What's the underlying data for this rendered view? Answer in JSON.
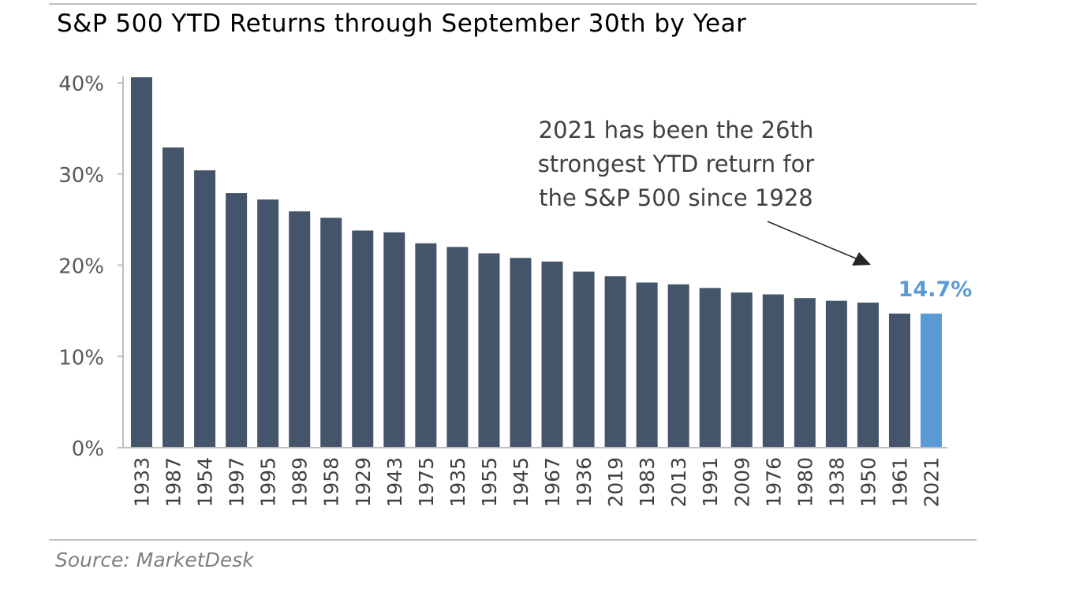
{
  "title": "S&P 500 YTD Returns through September 30th by Year",
  "source": "Source: MarketDesk",
  "colors": {
    "bar": "#44546a",
    "highlight": "#5b9bd5",
    "axis": "#bfbfbf"
  },
  "chart_data": {
    "type": "bar",
    "categories": [
      "1933",
      "1987",
      "1954",
      "1997",
      "1995",
      "1989",
      "1958",
      "1929",
      "1943",
      "1975",
      "1935",
      "1955",
      "1945",
      "1967",
      "1936",
      "2019",
      "1983",
      "2013",
      "1991",
      "2009",
      "1976",
      "1980",
      "1938",
      "1950",
      "1961",
      "2021"
    ],
    "values": [
      40.6,
      32.9,
      30.4,
      27.9,
      27.2,
      25.9,
      25.2,
      23.8,
      23.6,
      22.4,
      22.0,
      21.3,
      20.8,
      20.4,
      19.3,
      18.8,
      18.1,
      17.9,
      17.5,
      17.0,
      16.8,
      16.4,
      16.1,
      15.9,
      14.7,
      14.7
    ],
    "highlight_category": "2021",
    "highlight_label": "14.7%",
    "yticks": [
      "0%",
      "10%",
      "20%",
      "30%",
      "40%"
    ],
    "ylim": [
      0,
      40
    ],
    "annotation": [
      "2021 has been the 26th",
      "strongest YTD return for",
      "the S&P 500 since 1928"
    ],
    "grid": false,
    "legend": "none"
  }
}
